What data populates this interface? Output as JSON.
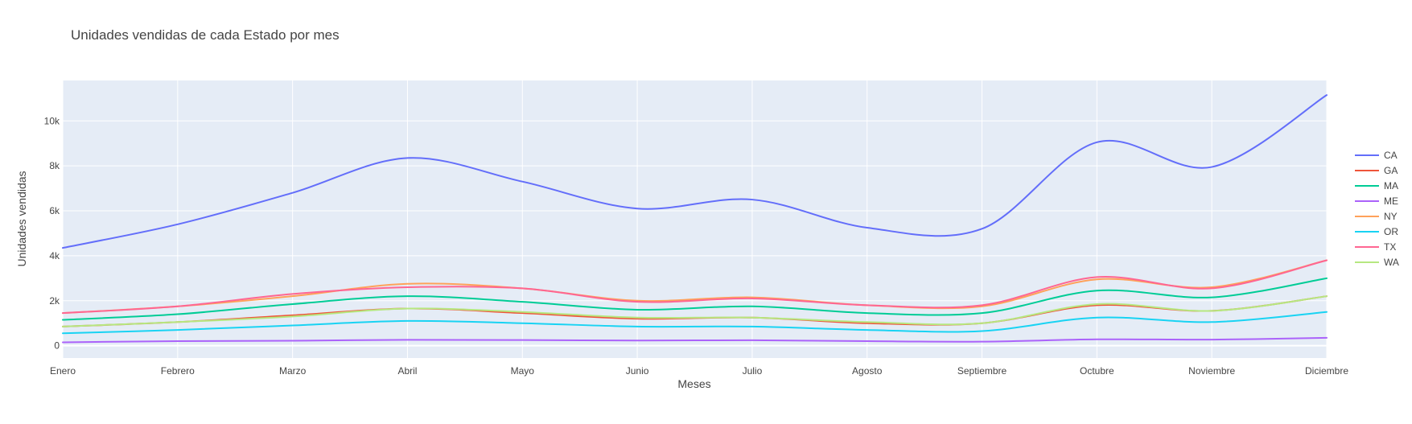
{
  "chart_data": {
    "type": "line",
    "title": "Unidades vendidas de cada Estado por mes",
    "xlabel": "Meses",
    "ylabel": "Unidades vendidas",
    "categories": [
      "Enero",
      "Febrero",
      "Marzo",
      "Abril",
      "Mayo",
      "Junio",
      "Julio",
      "Agosto",
      "Septiembre",
      "Octubre",
      "Noviembre",
      "Diciembre"
    ],
    "ylim": [
      -550,
      11800
    ],
    "yticks": [
      {
        "value": 0,
        "label": "0"
      },
      {
        "value": 2000,
        "label": "2k"
      },
      {
        "value": 4000,
        "label": "4k"
      },
      {
        "value": 6000,
        "label": "6k"
      },
      {
        "value": 8000,
        "label": "8k"
      },
      {
        "value": 10000,
        "label": "10k"
      }
    ],
    "grid": true,
    "legend_position": "right",
    "series": [
      {
        "name": "CA",
        "color": "#636efa",
        "values": [
          4350,
          5400,
          6800,
          8350,
          7300,
          6100,
          6500,
          5250,
          5200,
          9050,
          7950,
          11150
        ]
      },
      {
        "name": "GA",
        "color": "#EF553B",
        "values": [
          850,
          1050,
          1350,
          1650,
          1450,
          1200,
          1250,
          1000,
          1000,
          1800,
          1550,
          2200
        ]
      },
      {
        "name": "MA",
        "color": "#00cc96",
        "values": [
          1150,
          1400,
          1850,
          2200,
          1950,
          1600,
          1750,
          1450,
          1450,
          2450,
          2150,
          3000
        ]
      },
      {
        "name": "ME",
        "color": "#ab63fa",
        "values": [
          150,
          200,
          220,
          260,
          250,
          230,
          240,
          200,
          180,
          280,
          270,
          350
        ]
      },
      {
        "name": "NY",
        "color": "#FFA15A",
        "values": [
          1450,
          1750,
          2200,
          2750,
          2550,
          2000,
          2150,
          1800,
          1750,
          2950,
          2600,
          3800
        ]
      },
      {
        "name": "OR",
        "color": "#19d3f3",
        "values": [
          550,
          700,
          900,
          1100,
          1000,
          850,
          850,
          700,
          650,
          1250,
          1050,
          1500
        ]
      },
      {
        "name": "TX",
        "color": "#FF6692",
        "values": [
          1450,
          1750,
          2300,
          2600,
          2550,
          1950,
          2100,
          1800,
          1800,
          3050,
          2550,
          3800
        ]
      },
      {
        "name": "WA",
        "color": "#B6E880",
        "values": [
          850,
          1050,
          1300,
          1650,
          1500,
          1250,
          1250,
          1050,
          1000,
          1850,
          1550,
          2200
        ]
      }
    ]
  },
  "colors": {
    "plot_background": "#e5ecf6",
    "gridline": "#ffffff",
    "text": "#444444"
  }
}
